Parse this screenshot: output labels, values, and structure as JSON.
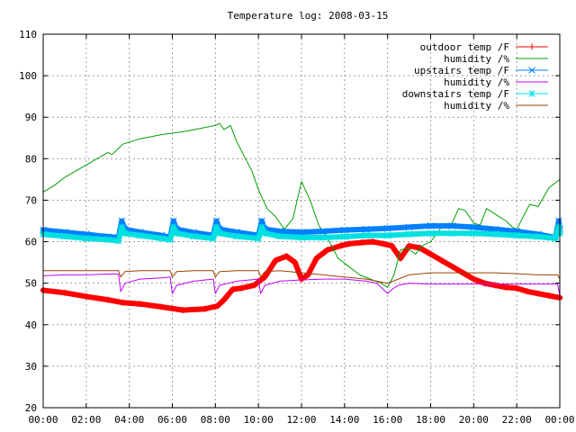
{
  "chart_data": {
    "type": "line",
    "title": "Temperature log: 2008-03-15",
    "xlabel": "",
    "ylabel": "",
    "xlim": [
      0,
      24
    ],
    "ylim": [
      20,
      110
    ],
    "x_ticks": [
      "00:00",
      "02:00",
      "04:00",
      "06:00",
      "08:00",
      "10:00",
      "12:00",
      "14:00",
      "16:00",
      "18:00",
      "20:00",
      "22:00",
      "00:00"
    ],
    "y_ticks": [
      20,
      30,
      40,
      50,
      60,
      70,
      80,
      90,
      100,
      110
    ],
    "grid": true,
    "legend_position": "top-right",
    "series": [
      {
        "name": "outdoor temp /F",
        "color": "#ff0000",
        "marker": "plus",
        "points": [
          [
            0,
            48.3
          ],
          [
            1,
            47.7
          ],
          [
            2,
            46.8
          ],
          [
            3,
            46.0
          ],
          [
            3.7,
            45.3
          ],
          [
            4.5,
            45.0
          ],
          [
            5.5,
            44.3
          ],
          [
            6.5,
            43.5
          ],
          [
            7.5,
            43.8
          ],
          [
            8.1,
            44.5
          ],
          [
            8.4,
            46.0
          ],
          [
            8.8,
            48.5
          ],
          [
            9.2,
            48.8
          ],
          [
            9.8,
            49.5
          ],
          [
            10.3,
            51.5
          ],
          [
            10.8,
            55.5
          ],
          [
            11.3,
            56.5
          ],
          [
            11.7,
            55.0
          ],
          [
            12.0,
            51.0
          ],
          [
            12.3,
            52.0
          ],
          [
            12.7,
            56.0
          ],
          [
            13.2,
            58.0
          ],
          [
            13.8,
            59.0
          ],
          [
            14.2,
            59.5
          ],
          [
            14.8,
            59.8
          ],
          [
            15.3,
            60.0
          ],
          [
            15.8,
            59.5
          ],
          [
            16.2,
            59.0
          ],
          [
            16.6,
            56.0
          ],
          [
            17.0,
            59.0
          ],
          [
            17.5,
            58.5
          ],
          [
            18.0,
            57.0
          ],
          [
            18.5,
            55.5
          ],
          [
            19.0,
            54.0
          ],
          [
            19.5,
            52.5
          ],
          [
            20.0,
            51.0
          ],
          [
            20.5,
            50.0
          ],
          [
            21.0,
            49.5
          ],
          [
            21.5,
            49.0
          ],
          [
            22.0,
            48.8
          ],
          [
            22.5,
            48.0
          ],
          [
            23.0,
            47.5
          ],
          [
            23.5,
            47.0
          ],
          [
            24.0,
            46.5
          ]
        ]
      },
      {
        "name": "humidity /%",
        "color": "#00a000",
        "marker": "none",
        "points": [
          [
            0,
            72
          ],
          [
            0.5,
            73.5
          ],
          [
            1,
            75.5
          ],
          [
            2,
            78.5
          ],
          [
            3,
            81.5
          ],
          [
            3.2,
            81.0
          ],
          [
            3.7,
            83.5
          ],
          [
            4.5,
            84.8
          ],
          [
            5.5,
            85.8
          ],
          [
            6.5,
            86.5
          ],
          [
            7.5,
            87.5
          ],
          [
            8,
            88.0
          ],
          [
            8.2,
            88.5
          ],
          [
            8.4,
            87.0
          ],
          [
            8.7,
            88.0
          ],
          [
            9.0,
            84.0
          ],
          [
            9.3,
            81.0
          ],
          [
            9.7,
            77.0
          ],
          [
            10.0,
            72.5
          ],
          [
            10.4,
            68.0
          ],
          [
            10.8,
            66.0
          ],
          [
            11.2,
            63.0
          ],
          [
            11.6,
            65.5
          ],
          [
            12.0,
            74.5
          ],
          [
            12.4,
            70.0
          ],
          [
            12.8,
            64.0
          ],
          [
            13.3,
            60.0
          ],
          [
            13.7,
            56.0
          ],
          [
            14.2,
            54.0
          ],
          [
            14.7,
            52.0
          ],
          [
            15.2,
            51.0
          ],
          [
            15.7,
            50.0
          ],
          [
            16.0,
            49.0
          ],
          [
            16.3,
            52.0
          ],
          [
            16.6,
            58.0
          ],
          [
            16.9,
            58.5
          ],
          [
            17.3,
            57.0
          ],
          [
            17.6,
            59.0
          ],
          [
            18.0,
            60.0
          ],
          [
            18.5,
            63.5
          ],
          [
            19.0,
            64.5
          ],
          [
            19.3,
            68.0
          ],
          [
            19.6,
            67.5
          ],
          [
            20.0,
            64.5
          ],
          [
            20.3,
            64.0
          ],
          [
            20.6,
            68.0
          ],
          [
            20.9,
            67.0
          ],
          [
            21.2,
            66.0
          ],
          [
            21.5,
            65.0
          ],
          [
            21.8,
            63.5
          ],
          [
            22.0,
            63.0
          ],
          [
            22.3,
            66.0
          ],
          [
            22.6,
            69.0
          ],
          [
            23.0,
            68.5
          ],
          [
            23.5,
            73.0
          ],
          [
            24.0,
            75.0
          ]
        ]
      },
      {
        "name": "upstairs temp /F",
        "color": "#0080ff",
        "marker": "cross",
        "points": [
          [
            0,
            62.8
          ],
          [
            1,
            62.3
          ],
          [
            2,
            61.8
          ],
          [
            3,
            61.2
          ],
          [
            3.5,
            61.0
          ],
          [
            3.65,
            65.0
          ],
          [
            3.8,
            63.0
          ],
          [
            4.5,
            62.3
          ],
          [
            5.5,
            61.5
          ],
          [
            5.9,
            61.0
          ],
          [
            6.05,
            65.0
          ],
          [
            6.2,
            63.0
          ],
          [
            7.0,
            62.2
          ],
          [
            7.9,
            61.5
          ],
          [
            8.05,
            65.0
          ],
          [
            8.2,
            63.0
          ],
          [
            9.0,
            62.3
          ],
          [
            10.0,
            61.5
          ],
          [
            10.15,
            65.0
          ],
          [
            10.3,
            63.0
          ],
          [
            11.0,
            62.5
          ],
          [
            12.0,
            62.3
          ],
          [
            13.0,
            62.5
          ],
          [
            14.0,
            62.8
          ],
          [
            15.0,
            63.0
          ],
          [
            16.0,
            63.2
          ],
          [
            17.0,
            63.5
          ],
          [
            18.0,
            63.8
          ],
          [
            19.0,
            63.8
          ],
          [
            20.0,
            63.5
          ],
          [
            21.0,
            63.0
          ],
          [
            22.0,
            62.5
          ],
          [
            23.0,
            61.8
          ],
          [
            23.8,
            61.0
          ],
          [
            23.95,
            65.0
          ],
          [
            24.0,
            63.0
          ]
        ]
      },
      {
        "name": "humidity /%",
        "color": "#c000ff",
        "marker": "none",
        "points": [
          [
            0,
            51.8
          ],
          [
            1,
            52.0
          ],
          [
            2,
            52.0
          ],
          [
            3,
            52.2
          ],
          [
            3.5,
            52.2
          ],
          [
            3.6,
            48.0
          ],
          [
            3.8,
            50.0
          ],
          [
            4.5,
            51.0
          ],
          [
            5.5,
            51.3
          ],
          [
            5.9,
            51.5
          ],
          [
            6.0,
            47.5
          ],
          [
            6.2,
            49.5
          ],
          [
            7.0,
            50.5
          ],
          [
            7.9,
            51.0
          ],
          [
            8.0,
            47.5
          ],
          [
            8.2,
            49.5
          ],
          [
            9.0,
            50.5
          ],
          [
            10.0,
            51.0
          ],
          [
            10.1,
            47.5
          ],
          [
            10.3,
            49.5
          ],
          [
            11.0,
            50.5
          ],
          [
            12.0,
            50.8
          ],
          [
            13.0,
            51.0
          ],
          [
            14.0,
            51.0
          ],
          [
            15.0,
            50.5
          ],
          [
            15.5,
            50.0
          ],
          [
            15.8,
            48.5
          ],
          [
            16.0,
            47.5
          ],
          [
            16.2,
            48.5
          ],
          [
            16.5,
            49.5
          ],
          [
            17.0,
            50.0
          ],
          [
            18.0,
            49.8
          ],
          [
            19.0,
            49.8
          ],
          [
            20.0,
            49.8
          ],
          [
            21.0,
            49.8
          ],
          [
            22.0,
            49.8
          ],
          [
            23.0,
            49.8
          ],
          [
            23.9,
            49.8
          ],
          [
            24.0,
            47.0
          ]
        ]
      },
      {
        "name": "downstairs temp /F",
        "color": "#00e0e0",
        "marker": "star",
        "points": [
          [
            0,
            61.8
          ],
          [
            1,
            61.3
          ],
          [
            2,
            60.8
          ],
          [
            3,
            60.5
          ],
          [
            3.5,
            60.2
          ],
          [
            3.65,
            63.5
          ],
          [
            3.8,
            62.0
          ],
          [
            4.5,
            61.5
          ],
          [
            5.5,
            60.8
          ],
          [
            5.9,
            60.5
          ],
          [
            6.05,
            63.5
          ],
          [
            6.2,
            62.0
          ],
          [
            7.0,
            61.3
          ],
          [
            7.9,
            60.8
          ],
          [
            8.05,
            63.5
          ],
          [
            8.2,
            62.0
          ],
          [
            9.0,
            61.3
          ],
          [
            10.0,
            60.8
          ],
          [
            10.15,
            63.5
          ],
          [
            10.3,
            62.0
          ],
          [
            11.0,
            61.3
          ],
          [
            12.0,
            61.0
          ],
          [
            13.0,
            61.0
          ],
          [
            14.0,
            61.2
          ],
          [
            15.0,
            61.5
          ],
          [
            16.0,
            61.5
          ],
          [
            17.0,
            61.8
          ],
          [
            18.0,
            62.0
          ],
          [
            19.0,
            62.0
          ],
          [
            20.0,
            62.0
          ],
          [
            21.0,
            61.8
          ],
          [
            22.0,
            61.5
          ],
          [
            23.0,
            61.2
          ],
          [
            23.8,
            60.8
          ],
          [
            23.95,
            63.5
          ],
          [
            24.0,
            62.0
          ]
        ]
      },
      {
        "name": "humidity /%",
        "color": "#a04000",
        "marker": "none",
        "points": [
          [
            0,
            53.0
          ],
          [
            1,
            53.0
          ],
          [
            2,
            53.0
          ],
          [
            3,
            53.0
          ],
          [
            3.5,
            53.0
          ],
          [
            3.6,
            51.5
          ],
          [
            3.8,
            52.8
          ],
          [
            4.5,
            53.0
          ],
          [
            5.5,
            53.0
          ],
          [
            5.9,
            53.0
          ],
          [
            6.0,
            51.5
          ],
          [
            6.2,
            52.8
          ],
          [
            7.0,
            53.0
          ],
          [
            7.9,
            53.0
          ],
          [
            8.0,
            51.5
          ],
          [
            8.2,
            52.8
          ],
          [
            9.0,
            53.0
          ],
          [
            10.0,
            53.0
          ],
          [
            10.1,
            51.5
          ],
          [
            10.3,
            52.8
          ],
          [
            11.0,
            53.0
          ],
          [
            12.0,
            52.5
          ],
          [
            13.0,
            52.0
          ],
          [
            14.0,
            51.5
          ],
          [
            15.0,
            51.0
          ],
          [
            15.5,
            50.5
          ],
          [
            16.0,
            50.0
          ],
          [
            16.5,
            51.0
          ],
          [
            17.0,
            52.0
          ],
          [
            18.0,
            52.5
          ],
          [
            19.0,
            52.5
          ],
          [
            20.0,
            52.5
          ],
          [
            21.0,
            52.5
          ],
          [
            22.0,
            52.3
          ],
          [
            23.0,
            52.0
          ],
          [
            23.9,
            52.0
          ],
          [
            24.0,
            51.0
          ]
        ]
      }
    ]
  }
}
